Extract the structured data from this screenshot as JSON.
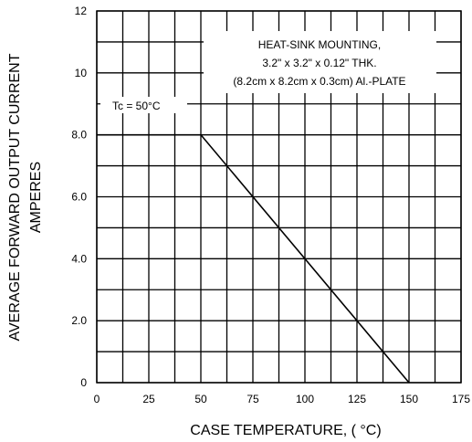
{
  "chart_data": {
    "type": "line",
    "xlabel": "CASE TEMPERATURE, ( °C)",
    "ylabel_line1": "AVERAGE FORWARD OUTPUT CURRENT",
    "ylabel_line2": "AMPERES",
    "xlim": [
      0,
      175
    ],
    "ylim": [
      0,
      12
    ],
    "x_ticks": [
      0,
      25,
      50,
      75,
      100,
      125,
      150,
      175
    ],
    "x_tick_labels": [
      "0",
      "25",
      "50",
      "75",
      "100",
      "125",
      "150",
      "175"
    ],
    "y_ticks": [
      0,
      2,
      4,
      6,
      8,
      10,
      12
    ],
    "y_tick_labels": [
      "0",
      "2.0",
      "4.0",
      "6.0",
      "8.0",
      "10",
      "12"
    ],
    "grid": true,
    "series": [
      {
        "x": [
          0,
          50,
          150
        ],
        "y": [
          8,
          8,
          0
        ],
        "color": "#000000"
      }
    ],
    "annotations": {
      "box_lines": [
        "HEAT-SINK MOUNTING,",
        "3.2\" x 3.2\" x 0.12\" THK.",
        "(8.2cm x 8.2cm x 0.3cm) Al.-PLATE"
      ],
      "tc_label": "Tc = 50°C"
    }
  }
}
